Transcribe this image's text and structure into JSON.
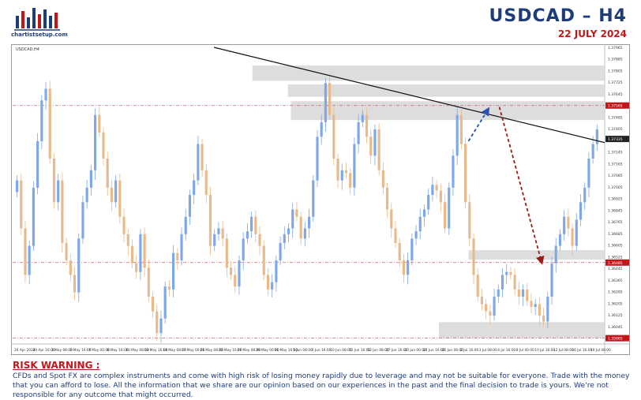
{
  "header": {
    "logo_text": "chartistsetup.com",
    "pair_title": "USDCAD  –  H4",
    "date": "22 JULY 2024"
  },
  "chart_data": {
    "type": "candlestick",
    "symbol_label": "USDCAD,H4",
    "ylim": [
      1.35925,
      1.37965
    ],
    "y_ticks": [
      "1.37965",
      "1.37885",
      "1.37805",
      "1.37725",
      "1.37645",
      "1.37565",
      "1.37485",
      "1.37405",
      "1.37325",
      "1.37245",
      "1.37165",
      "1.37085",
      "1.37005",
      "1.36925",
      "1.36845",
      "1.36765",
      "1.36685",
      "1.36605",
      "1.36525",
      "1.36445",
      "1.36365",
      "1.36285",
      "1.36205",
      "1.36125",
      "1.36045",
      "1.35965"
    ],
    "x_labels": [
      "26 Apr 2024",
      "29 Apr 16:00",
      "1 May 08:00",
      "2 May 16:00",
      "7 May 00:00",
      "8 May 16:00",
      "10 May 08:00",
      "13 May 16:00",
      "14 May 08:00",
      "17 May 00:00",
      "21 May 08:00",
      "22 May 16:00",
      "27 May 08:00",
      "29 May 00:00",
      "31 May 16:00",
      "5 Jun 08:00",
      "6 Jun 16:00",
      "10 Jun 08:00",
      "11 Jun 16:00",
      "12 Jun 08:00",
      "17 Jun 16:00",
      "20 Jun 00:00",
      "24 Jun 16:00",
      "26 Jun 08:00",
      "2 Jul 16:00",
      "3 Jul 08:00",
      "4 Jul 16:00",
      "8 Jul 00:00",
      "10 Jul 16:00",
      "12 Jul 08:00",
      "16 Jul 16:00",
      "19 Jul 08:00"
    ],
    "price_labels": [
      {
        "value": 1.37565,
        "text": "1.37565",
        "color": "#c0181a"
      },
      {
        "value": 1.37335,
        "text": "1.37335",
        "color": "#222222"
      },
      {
        "value": 1.36485,
        "text": "1.36485",
        "color": "#c0181a"
      },
      {
        "value": 1.35965,
        "text": "1.35965",
        "color": "#c0181a"
      }
    ],
    "zones": [
      {
        "from": 1.37735,
        "to": 1.3784
      },
      {
        "from": 1.37625,
        "to": 1.3771
      },
      {
        "from": 1.37465,
        "to": 1.37595
      },
      {
        "from": 1.36505,
        "to": 1.3657
      },
      {
        "from": 1.35965,
        "to": 1.36075
      }
    ],
    "horizontal_levels": [
      1.37565,
      1.36485,
      1.35965
    ],
    "trendline": {
      "from_index": 0.34,
      "from_price": 1.37965,
      "to_index": 1.0,
      "to_price": 1.3731
    },
    "arrow_up": {
      "from_index": 0.77,
      "from_price": 1.3732,
      "to_index": 0.804,
      "to_price": 1.37545,
      "color": "#2a4fb0"
    },
    "arrow_down": {
      "from_index": 0.822,
      "from_price": 1.37555,
      "to_index": 0.894,
      "to_price": 1.3648,
      "color": "#9a1d14"
    },
    "closes": [
      1.3705,
      1.3672,
      1.364,
      1.366,
      1.37,
      1.3732,
      1.376,
      1.3768,
      1.372,
      1.369,
      1.3705,
      1.3662,
      1.365,
      1.364,
      1.3628,
      1.3665,
      1.369,
      1.37,
      1.3712,
      1.375,
      1.3738,
      1.372,
      1.37,
      1.369,
      1.3705,
      1.368,
      1.3668,
      1.366,
      1.3648,
      1.3642,
      1.3668,
      1.3645,
      1.3625,
      1.3615,
      1.36,
      1.361,
      1.3632,
      1.363,
      1.3655,
      1.365,
      1.3668,
      1.368,
      1.3695,
      1.3705,
      1.373,
      1.3712,
      1.3695,
      1.366,
      1.3668,
      1.3672,
      1.3665,
      1.3645,
      1.364,
      1.3632,
      1.365,
      1.3665,
      1.367,
      1.368,
      1.3668,
      1.366,
      1.364,
      1.363,
      1.3635,
      1.365,
      1.3662,
      1.3668,
      1.3672,
      1.3685,
      1.368,
      1.3665,
      1.3672,
      1.368,
      1.3705,
      1.3735,
      1.3745,
      1.3772,
      1.375,
      1.372,
      1.3705,
      1.3712,
      1.371,
      1.37,
      1.373,
      1.3745,
      1.375,
      1.3735,
      1.3722,
      1.374,
      1.3712,
      1.37,
      1.3685,
      1.3672,
      1.3662,
      1.365,
      1.364,
      1.365,
      1.3665,
      1.367,
      1.368,
      1.3685,
      1.3695,
      1.3702,
      1.3698,
      1.369,
      1.3672,
      1.37,
      1.3722,
      1.375,
      1.373,
      1.369,
      1.3665,
      1.364,
      1.3625,
      1.362,
      1.3615,
      1.3612,
      1.3625,
      1.363,
      1.364,
      1.3642,
      1.364,
      1.363,
      1.3625,
      1.363,
      1.3622,
      1.3618,
      1.362,
      1.3612,
      1.3608,
      1.3625,
      1.3648,
      1.366,
      1.3668,
      1.368,
      1.3672,
      1.366,
      1.3678,
      1.369,
      1.37,
      1.372,
      1.373,
      1.374
    ]
  },
  "risk": {
    "title": "RISK WARNING :",
    "text": "CFDs and Spot FX are complex instruments and come with high risk of losing money rapidly due to leverage and may not be suitable for everyone.  Trade with the  money that you can afford to  lose. All the information that we  share are our opinion based on our experiences in the past and the final decision to trade is yours. We're not responsible for any outcome  that might occurred."
  },
  "colors": {
    "navy": "#1f3c7a",
    "red": "#c0181a",
    "zone": "#d9d9d9",
    "candle_up": "#7da7e8",
    "candle_down": "#e8b98a"
  }
}
